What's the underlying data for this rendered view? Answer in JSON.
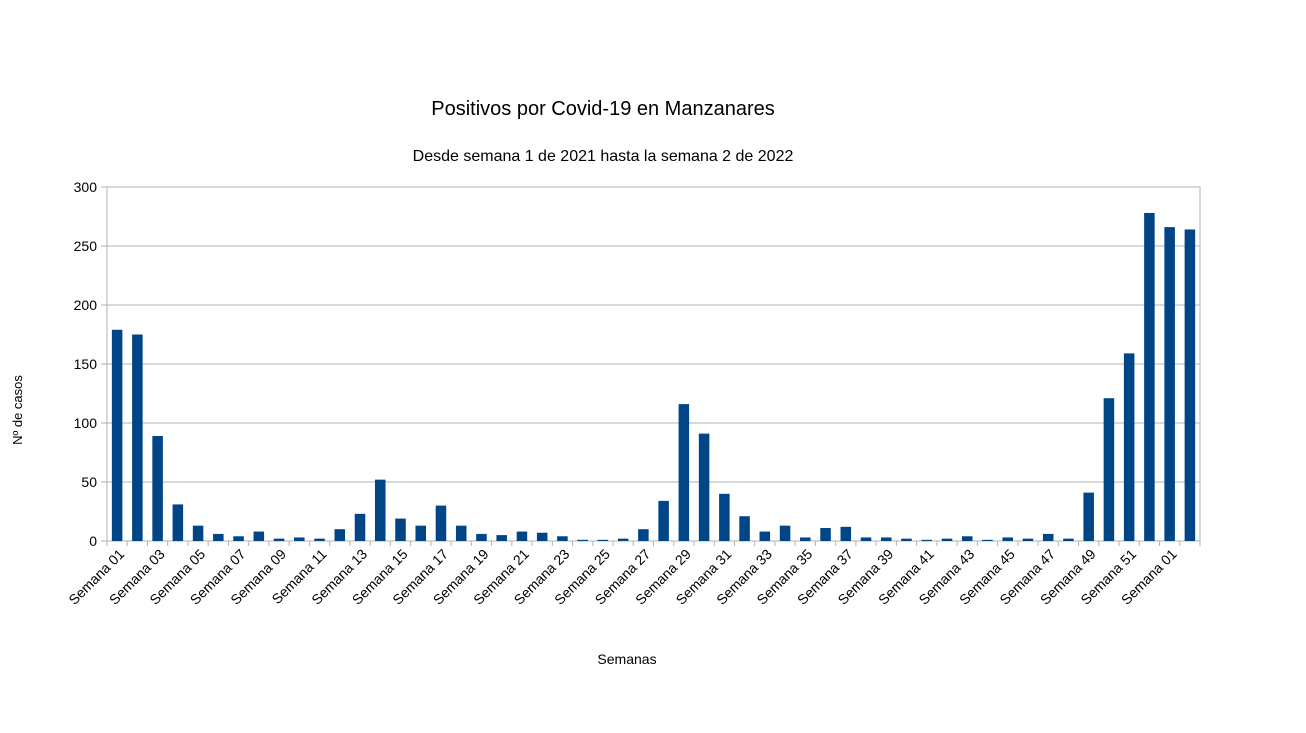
{
  "chart_data": {
    "type": "bar",
    "title": "Positivos por Covid-19 en Manzanares",
    "subtitle": "Desde semana 1 de 2021 hasta la semana 2 de 2022",
    "xlabel": "Semanas",
    "ylabel": "Nº de casos",
    "ylim": [
      0,
      300
    ],
    "yticks": [
      0,
      50,
      100,
      150,
      200,
      250,
      300
    ],
    "grid": true,
    "bar_color": "#004586",
    "categories": [
      "Semana 01",
      "Semana 02",
      "Semana 03",
      "Semana 04",
      "Semana 05",
      "Semana 06",
      "Semana 07",
      "Semana 08",
      "Semana 09",
      "Semana 10",
      "Semana 11",
      "Semana 12",
      "Semana 13",
      "Semana 14",
      "Semana 15",
      "Semana 16",
      "Semana 17",
      "Semana 18",
      "Semana 19",
      "Semana 20",
      "Semana 21",
      "Semana 22",
      "Semana 23",
      "Semana 24",
      "Semana 25",
      "Semana 26",
      "Semana 27",
      "Semana 28",
      "Semana 29",
      "Semana 30",
      "Semana 31",
      "Semana 32",
      "Semana 33",
      "Semana 34",
      "Semana 35",
      "Semana 36",
      "Semana 37",
      "Semana 38",
      "Semana 39",
      "Semana 40",
      "Semana 41",
      "Semana 42",
      "Semana 43",
      "Semana 44",
      "Semana 45",
      "Semana 46",
      "Semana 47",
      "Semana 48",
      "Semana 49",
      "Semana 50",
      "Semana 51",
      "Semana 52",
      "Semana 01",
      "Semana 02"
    ],
    "xtick_labels": [
      "Semana 01",
      "Semana 03",
      "Semana 05",
      "Semana 07",
      "Semana 09",
      "Semana 11",
      "Semana 13",
      "Semana 15",
      "Semana 17",
      "Semana 19",
      "Semana 21",
      "Semana 23",
      "Semana 25",
      "Semana 27",
      "Semana 29",
      "Semana 31",
      "Semana 33",
      "Semana 35",
      "Semana 37",
      "Semana 39",
      "Semana 41",
      "Semana 43",
      "Semana 45",
      "Semana 47",
      "Semana 49",
      "Semana 51",
      "Semana 01"
    ],
    "values": [
      179,
      175,
      89,
      31,
      13,
      6,
      4,
      8,
      2,
      3,
      2,
      10,
      23,
      52,
      19,
      13,
      30,
      13,
      6,
      5,
      8,
      7,
      4,
      1,
      1,
      2,
      10,
      34,
      116,
      91,
      40,
      21,
      8,
      13,
      3,
      11,
      12,
      3,
      3,
      2,
      1,
      2,
      4,
      1,
      3,
      2,
      6,
      2,
      41,
      121,
      159,
      278,
      266,
      264
    ]
  }
}
